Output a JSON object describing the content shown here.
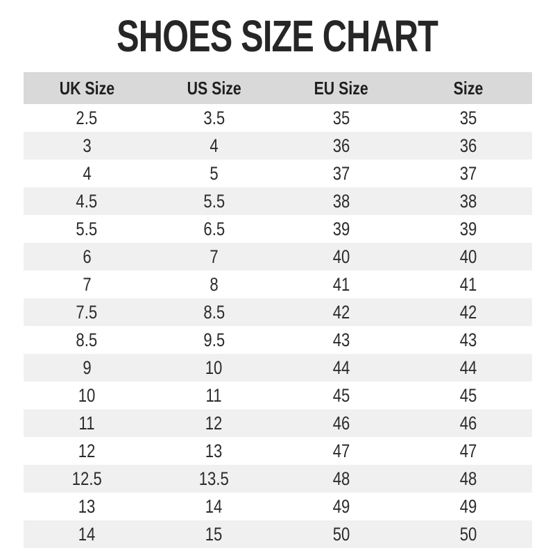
{
  "page": {
    "title": "SHOES SIZE CHART"
  },
  "colors": {
    "background": "#ffffff",
    "header_bg": "#d9d9d9",
    "row_alt_bg": "#f0f0f0",
    "text": "#262626"
  },
  "table": {
    "columns": [
      "UK Size",
      "US Size",
      "EU Size",
      "Size"
    ],
    "column_keys": [
      "uk-size",
      "us-size",
      "eu-size",
      "size"
    ],
    "rows": [
      [
        "2.5",
        "3.5",
        "35",
        "35"
      ],
      [
        "3",
        "4",
        "36",
        "36"
      ],
      [
        "4",
        "5",
        "37",
        "37"
      ],
      [
        "4.5",
        "5.5",
        "38",
        "38"
      ],
      [
        "5.5",
        "6.5",
        "39",
        "39"
      ],
      [
        "6",
        "7",
        "40",
        "40"
      ],
      [
        "7",
        "8",
        "41",
        "41"
      ],
      [
        "7.5",
        "8.5",
        "42",
        "42"
      ],
      [
        "8.5",
        "9.5",
        "43",
        "43"
      ],
      [
        "9",
        "10",
        "44",
        "44"
      ],
      [
        "10",
        "11",
        "45",
        "45"
      ],
      [
        "11",
        "12",
        "46",
        "46"
      ],
      [
        "12",
        "13",
        "47",
        "47"
      ],
      [
        "12.5",
        "13.5",
        "48",
        "48"
      ],
      [
        "13",
        "14",
        "49",
        "49"
      ],
      [
        "14",
        "15",
        "50",
        "50"
      ]
    ]
  },
  "chart_data": {
    "type": "table",
    "title": "SHOES SIZE CHART",
    "columns": [
      "UK Size",
      "US Size",
      "EU Size",
      "Size"
    ],
    "rows": [
      [
        "2.5",
        "3.5",
        "35",
        "35"
      ],
      [
        "3",
        "4",
        "36",
        "36"
      ],
      [
        "4",
        "5",
        "37",
        "37"
      ],
      [
        "4.5",
        "5.5",
        "38",
        "38"
      ],
      [
        "5.5",
        "6.5",
        "39",
        "39"
      ],
      [
        "6",
        "7",
        "40",
        "40"
      ],
      [
        "7",
        "8",
        "41",
        "41"
      ],
      [
        "7.5",
        "8.5",
        "42",
        "42"
      ],
      [
        "8.5",
        "9.5",
        "43",
        "43"
      ],
      [
        "9",
        "10",
        "44",
        "44"
      ],
      [
        "10",
        "11",
        "45",
        "45"
      ],
      [
        "11",
        "12",
        "46",
        "46"
      ],
      [
        "12",
        "13",
        "47",
        "47"
      ],
      [
        "12.5",
        "13.5",
        "48",
        "48"
      ],
      [
        "13",
        "14",
        "49",
        "49"
      ],
      [
        "14",
        "15",
        "50",
        "50"
      ]
    ],
    "layout": {
      "header_background": "#d9d9d9",
      "alternating_row_background": "#f0f0f0",
      "grid": false,
      "alignment": "center"
    }
  }
}
